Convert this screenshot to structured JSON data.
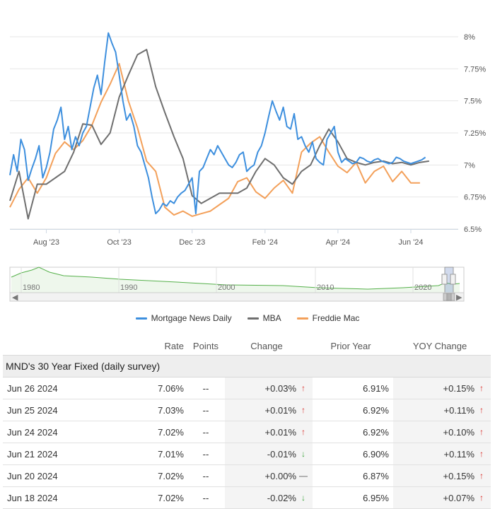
{
  "chart_data": {
    "type": "line",
    "title": "",
    "xlabel": "",
    "ylabel": "",
    "x_tick_labels": [
      "Aug '23",
      "Oct '23",
      "Dec '23",
      "Feb '24",
      "Apr '24",
      "Jun '24"
    ],
    "x_tick_months": [
      1.0,
      3.0,
      5.0,
      7.0,
      9.0,
      11.0
    ],
    "x_range_months": [
      0,
      12.3
    ],
    "y_ticks": [
      6.5,
      6.75,
      7.0,
      7.25,
      7.5,
      7.75,
      8.0
    ],
    "y_tick_labels": [
      "6.5%",
      "6.75%",
      "7%",
      "7.25%",
      "7.5%",
      "7.75%",
      "8%"
    ],
    "ylim": [
      6.5,
      8.0
    ],
    "grid": true,
    "legend_position": "bottom",
    "series": [
      {
        "name": "Mortgage News Daily",
        "color": "#3d8fde",
        "x": [
          0.0,
          0.1,
          0.2,
          0.3,
          0.4,
          0.5,
          0.6,
          0.7,
          0.8,
          0.9,
          1.0,
          1.1,
          1.2,
          1.3,
          1.4,
          1.5,
          1.6,
          1.7,
          1.8,
          1.9,
          2.0,
          2.1,
          2.2,
          2.3,
          2.4,
          2.5,
          2.6,
          2.7,
          2.8,
          2.9,
          3.0,
          3.1,
          3.2,
          3.3,
          3.4,
          3.5,
          3.6,
          3.7,
          3.8,
          3.9,
          4.0,
          4.1,
          4.2,
          4.3,
          4.4,
          4.5,
          4.6,
          4.7,
          4.8,
          4.9,
          5.0,
          5.1,
          5.2,
          5.3,
          5.4,
          5.5,
          5.6,
          5.7,
          5.8,
          5.9,
          6.0,
          6.1,
          6.2,
          6.3,
          6.4,
          6.5,
          6.6,
          6.7,
          6.8,
          6.9,
          7.0,
          7.1,
          7.2,
          7.3,
          7.4,
          7.5,
          7.6,
          7.7,
          7.8,
          7.9,
          8.0,
          8.1,
          8.2,
          8.3,
          8.4,
          8.5,
          8.6,
          8.7,
          8.8,
          8.9,
          9.0,
          9.1,
          9.2,
          9.3,
          9.4,
          9.5,
          9.6,
          9.7,
          9.8,
          9.9,
          10.0,
          10.1,
          10.2,
          10.3,
          10.4,
          10.5,
          10.6,
          10.7,
          10.8,
          10.9,
          11.0,
          11.1,
          11.2,
          11.3,
          11.4
        ],
        "y": [
          6.92,
          7.08,
          6.95,
          7.2,
          7.12,
          6.88,
          6.97,
          7.05,
          7.15,
          6.9,
          6.98,
          7.1,
          7.28,
          7.35,
          7.45,
          7.2,
          7.3,
          7.12,
          7.22,
          7.15,
          7.25,
          7.3,
          7.45,
          7.6,
          7.7,
          7.55,
          7.8,
          8.03,
          7.95,
          7.88,
          7.7,
          7.5,
          7.35,
          7.4,
          7.3,
          7.15,
          7.1,
          7.0,
          6.9,
          6.75,
          6.62,
          6.65,
          6.7,
          6.68,
          6.72,
          6.7,
          6.75,
          6.78,
          6.8,
          6.85,
          6.9,
          6.62,
          6.95,
          6.98,
          7.05,
          7.12,
          7.08,
          7.15,
          7.1,
          7.05,
          7.0,
          6.98,
          7.02,
          7.08,
          7.1,
          6.95,
          6.98,
          7.0,
          7.1,
          7.15,
          7.25,
          7.38,
          7.5,
          7.42,
          7.35,
          7.45,
          7.3,
          7.28,
          7.4,
          7.2,
          7.22,
          7.15,
          7.1,
          7.18,
          7.05,
          7.02,
          7.0,
          7.2,
          7.25,
          7.3,
          7.1,
          7.02,
          7.05,
          7.03,
          7.01,
          7.02,
          7.06,
          7.05,
          7.03,
          7.02,
          7.04,
          7.05,
          7.03,
          7.02,
          7.01,
          7.02,
          7.06,
          7.05,
          7.03,
          7.02,
          7.01,
          7.02,
          7.03,
          7.04,
          7.06
        ],
        "values_note_omitted": true
      },
      {
        "name": "MBA",
        "color": "#6f6f6f",
        "x": [
          0.0,
          0.25,
          0.5,
          0.75,
          1.0,
          1.25,
          1.5,
          1.75,
          2.0,
          2.25,
          2.5,
          2.75,
          3.0,
          3.25,
          3.5,
          3.75,
          4.0,
          4.25,
          4.5,
          4.75,
          5.0,
          5.25,
          5.5,
          5.75,
          6.0,
          6.25,
          6.5,
          6.75,
          7.0,
          7.25,
          7.5,
          7.75,
          8.0,
          8.25,
          8.5,
          8.75,
          9.0,
          9.25,
          9.5,
          9.75,
          10.0,
          10.25,
          10.5,
          10.75,
          11.0,
          11.25,
          11.5
        ],
        "y": [
          6.72,
          6.95,
          6.58,
          6.85,
          6.85,
          6.9,
          6.95,
          7.1,
          7.32,
          7.31,
          7.16,
          7.25,
          7.53,
          7.7,
          7.86,
          7.9,
          7.61,
          7.41,
          7.22,
          7.05,
          6.76,
          6.7,
          6.74,
          6.78,
          6.78,
          6.78,
          6.82,
          6.95,
          7.05,
          7.0,
          6.9,
          6.85,
          6.95,
          7.0,
          7.15,
          7.28,
          7.18,
          7.05,
          7.02,
          7.0,
          7.02,
          7.03,
          7.01,
          7.02,
          7.0,
          7.02,
          7.03
        ]
      },
      {
        "name": "Freddie Mac",
        "color": "#f3a05a",
        "x": [
          0.0,
          0.25,
          0.5,
          0.75,
          1.0,
          1.25,
          1.5,
          1.75,
          2.0,
          2.25,
          2.5,
          2.75,
          3.0,
          3.25,
          3.5,
          3.75,
          4.0,
          4.25,
          4.5,
          4.75,
          5.0,
          5.25,
          5.5,
          5.75,
          6.0,
          6.25,
          6.5,
          6.75,
          7.0,
          7.25,
          7.5,
          7.75,
          8.0,
          8.25,
          8.5,
          8.75,
          9.0,
          9.25,
          9.5,
          9.75,
          10.0,
          10.25,
          10.5,
          10.75,
          11.0,
          11.25
        ],
        "y": [
          6.67,
          6.81,
          6.9,
          6.78,
          6.9,
          7.09,
          7.18,
          7.12,
          7.19,
          7.31,
          7.49,
          7.63,
          7.79,
          7.5,
          7.29,
          7.03,
          6.95,
          6.67,
          6.61,
          6.64,
          6.6,
          6.62,
          6.64,
          6.69,
          6.74,
          6.87,
          6.9,
          6.79,
          6.74,
          6.82,
          6.88,
          6.78,
          7.1,
          7.17,
          7.22,
          7.1,
          6.99,
          6.94,
          7.02,
          6.86,
          6.95,
          6.99,
          6.87,
          6.95,
          6.86,
          6.86
        ]
      }
    ]
  },
  "navigator": {
    "year_labels": [
      "1980",
      "1990",
      "2000",
      "2010",
      "2020"
    ],
    "line_color": "#55b04a",
    "handle_glyph": "|||",
    "scroll_left": "◀",
    "scroll_right": "▶"
  },
  "table": {
    "columns": [
      "Rate",
      "Points",
      "Change",
      "Prior Year",
      "YOY Change"
    ],
    "section_title": "MND's 30 Year Fixed (daily survey)",
    "rows": [
      {
        "date": "Jun 26 2024",
        "rate": "7.06%",
        "points": "--",
        "change": "+0.03%",
        "change_dir": "up",
        "prior": "6.91%",
        "yoy": "+0.15%",
        "yoy_dir": "up"
      },
      {
        "date": "Jun 25 2024",
        "rate": "7.03%",
        "points": "--",
        "change": "+0.01%",
        "change_dir": "up",
        "prior": "6.92%",
        "yoy": "+0.11%",
        "yoy_dir": "up"
      },
      {
        "date": "Jun 24 2024",
        "rate": "7.02%",
        "points": "--",
        "change": "+0.01%",
        "change_dir": "up",
        "prior": "6.92%",
        "yoy": "+0.10%",
        "yoy_dir": "up"
      },
      {
        "date": "Jun 21 2024",
        "rate": "7.01%",
        "points": "--",
        "change": "-0.01%",
        "change_dir": "down",
        "prior": "6.90%",
        "yoy": "+0.11%",
        "yoy_dir": "up"
      },
      {
        "date": "Jun 20 2024",
        "rate": "7.02%",
        "points": "--",
        "change": "+0.00%",
        "change_dir": "flat",
        "prior": "6.87%",
        "yoy": "+0.15%",
        "yoy_dir": "up"
      },
      {
        "date": "Jun 18 2024",
        "rate": "7.02%",
        "points": "--",
        "change": "-0.02%",
        "change_dir": "down",
        "prior": "6.95%",
        "yoy": "+0.07%",
        "yoy_dir": "up"
      }
    ]
  }
}
